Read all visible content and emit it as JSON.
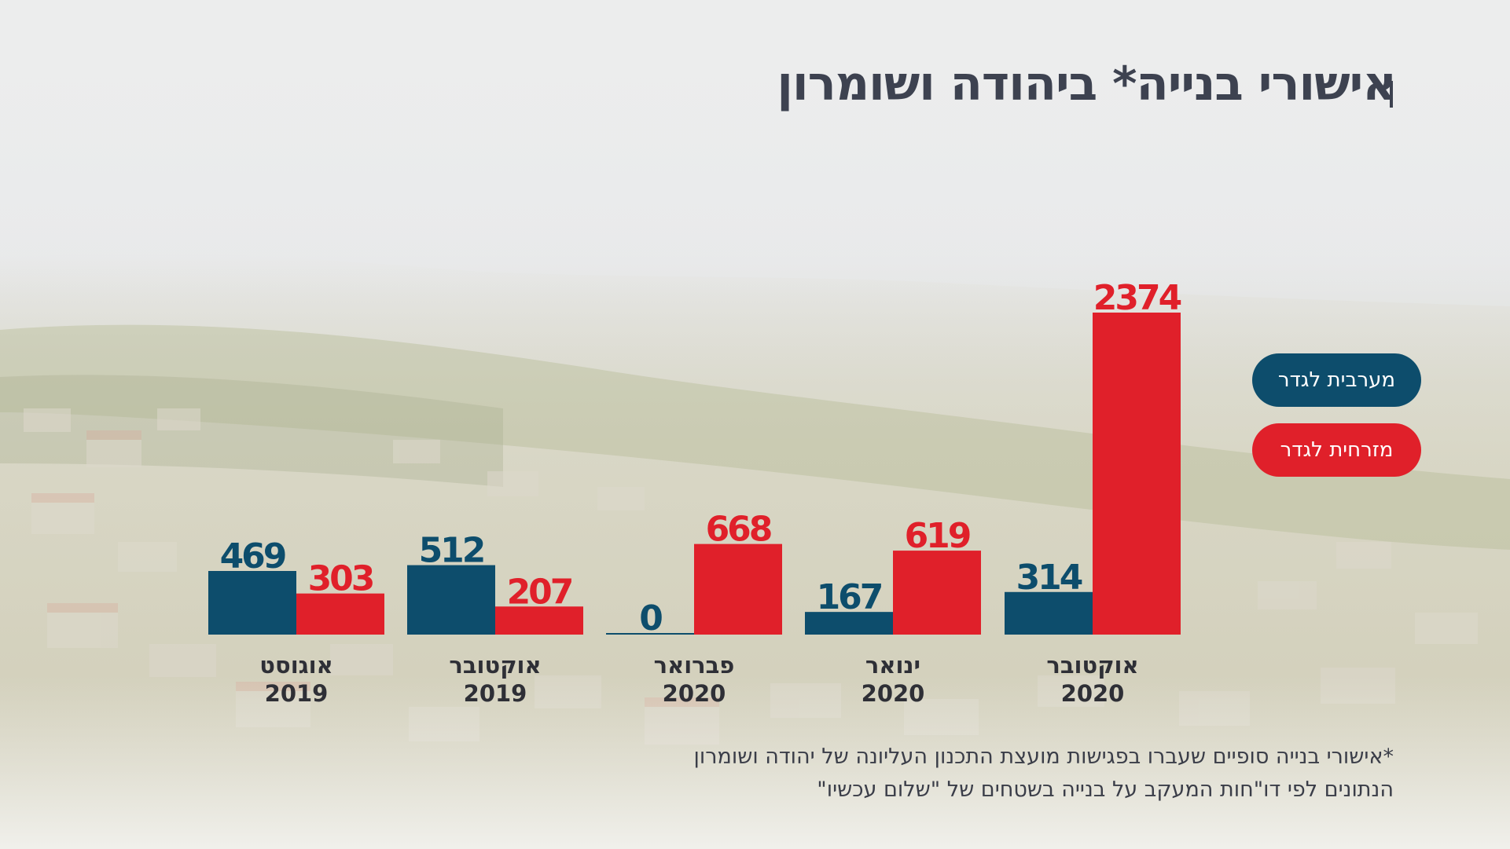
{
  "title": "אישורי בנייה* ביהודה ושומרון",
  "colors": {
    "west": "#0d4d6c",
    "east": "#e0202a",
    "title": "#3d4250",
    "axis_label": "#2e2f36"
  },
  "legend": [
    {
      "key": "west",
      "label": "מערבית לגדר"
    },
    {
      "key": "east",
      "label": "מזרחית לגדר"
    }
  ],
  "footnote": {
    "line1": "*אישורי בנייה סופיים שעברו בפגישות מועצת התכנון העליונה של יהודה ושומרון",
    "line2": "הנתונים לפי דו\"חות המעקב על בנייה בשטחים של \"שלום עכשיו\""
  },
  "chart_data": {
    "type": "bar",
    "title": "אישורי בנייה* ביהודה ושומרון",
    "categories": [
      {
        "month": "אוגוסט",
        "year": "2019"
      },
      {
        "month": "אוקטובר",
        "year": "2019"
      },
      {
        "month": "פברואר",
        "year": "2020"
      },
      {
        "month": "ינואר",
        "year": "2020"
      },
      {
        "month": "אוקטובר",
        "year": "2020"
      }
    ],
    "series": [
      {
        "name": "מערבית לגדר",
        "key": "west",
        "values": [
          469,
          512,
          0,
          167,
          314
        ]
      },
      {
        "name": "מזרחית לגדר",
        "key": "east",
        "values": [
          303,
          207,
          668,
          619,
          2374
        ]
      }
    ],
    "ylim": [
      0,
      2374
    ],
    "grid": false,
    "legend_position": "right"
  }
}
